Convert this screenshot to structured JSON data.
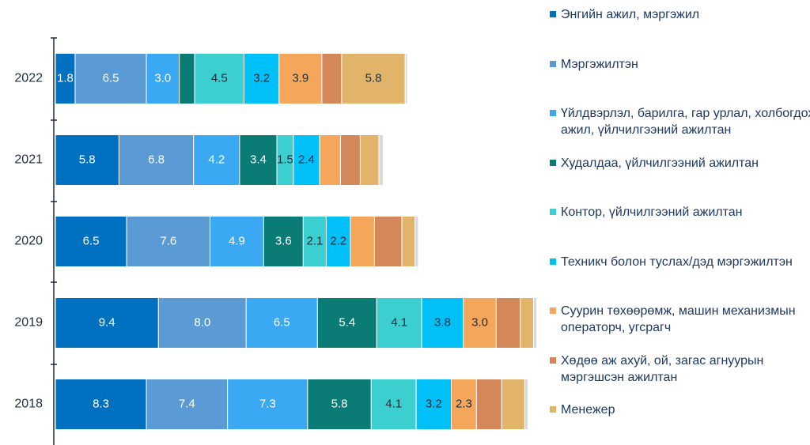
{
  "chart_data": {
    "type": "stacked-barh",
    "categories": [
      "2022",
      "2021",
      "2020",
      "2019",
      "2018"
    ],
    "xlim": [
      0,
      44
    ],
    "series": [
      {
        "name": "Энгийн ажил, мэргэжил",
        "color": "#0070c0",
        "values": [
          1.8,
          5.8,
          6.5,
          9.4,
          8.3
        ],
        "value_labels": [
          "1.8",
          "5.8",
          "6.5",
          "9.4",
          "8.3"
        ]
      },
      {
        "name": "Мэргэжилтэн",
        "color": "#5b9bd5",
        "values": [
          6.5,
          6.8,
          7.6,
          8.0,
          7.4
        ],
        "value_labels": [
          "6.5",
          "6.8",
          "7.6",
          "8.0",
          "7.4"
        ]
      },
      {
        "name": "Үйлдвэрлэл, барилга, гар урлал, холбогдох ажил, үйлчилгээний ажилтан",
        "color": "#3aa8f2",
        "values": [
          3.0,
          4.2,
          4.9,
          6.5,
          7.3
        ],
        "value_labels": [
          "3.0",
          "4.2",
          "4.9",
          "6.5",
          "7.3"
        ]
      },
      {
        "name": "Худалдаа, үйлчилгээний ажилтан",
        "color": "#0b7b75",
        "values": [
          1.4,
          3.4,
          3.6,
          5.4,
          5.8
        ],
        "value_labels": [
          null,
          "3.4",
          "3.6",
          "5.4",
          "5.8"
        ]
      },
      {
        "name": "Контор, үйлчилгээний ажилтан",
        "color": "#3ccfcf",
        "values": [
          4.5,
          1.5,
          2.1,
          4.1,
          4.1
        ],
        "value_labels": [
          "4.5",
          "1.5",
          "2.1",
          "4.1",
          "4.1"
        ]
      },
      {
        "name": "Техникч болон туслах/дэд мэргэжилтэн",
        "color": "#00c0f8",
        "values": [
          3.2,
          2.4,
          2.2,
          3.8,
          3.2
        ],
        "value_labels": [
          "3.2",
          "2.4",
          "2.2",
          "3.8",
          "3.2"
        ]
      },
      {
        "name": "Суурин төхөөрөмж, машин механизмын операторч, угсрагч",
        "color": "#f4a65a",
        "values": [
          3.9,
          1.9,
          2.2,
          3.0,
          2.3
        ],
        "value_labels": [
          "3.9",
          null,
          null,
          "3.0",
          "2.3"
        ]
      },
      {
        "name": "Хөдөө аж ахуй, ой, загас агнуурын мэргэшсэн ажилтан",
        "color": "#d4885a",
        "values": [
          1.8,
          1.8,
          2.5,
          2.2,
          2.3
        ],
        "value_labels": [
          null,
          null,
          null,
          null,
          null
        ]
      },
      {
        "name": "Менежер",
        "color": "#e2b46a",
        "values": [
          5.8,
          1.7,
          1.2,
          1.2,
          2.1
        ],
        "value_labels": [
          "5.8",
          null,
          null,
          null,
          null
        ]
      },
      {
        "color": "#d9d9d9",
        "values": [
          0.2,
          0.4,
          0.3,
          0.3,
          0.3
        ]
      }
    ]
  }
}
